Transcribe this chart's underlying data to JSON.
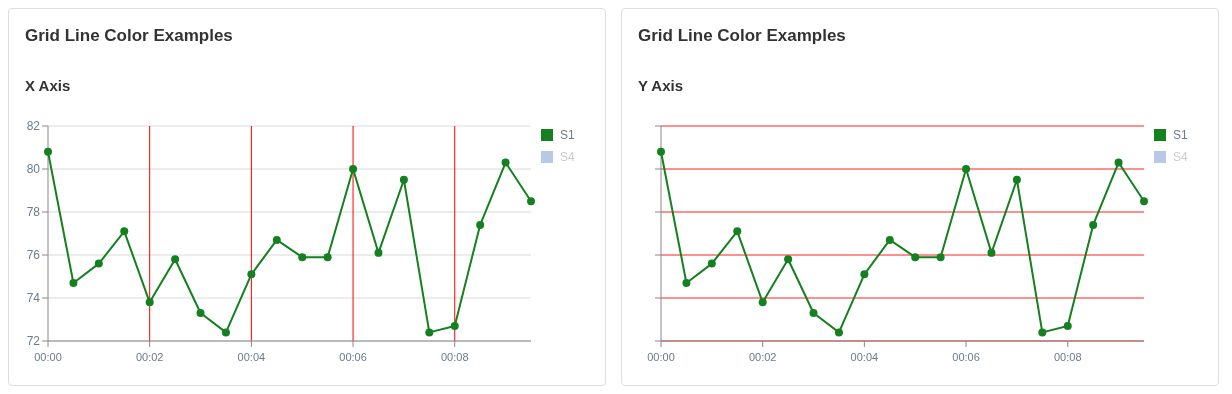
{
  "chart_data": [
    {
      "type": "line",
      "title": "Grid Line Color Examples",
      "subtitle": "X Axis",
      "x": [
        0,
        0.5,
        1,
        1.5,
        2,
        2.5,
        3,
        3.5,
        4,
        4.5,
        5,
        5.5,
        6,
        6.5,
        7,
        7.5,
        8,
        8.5,
        9,
        9.5
      ],
      "series": [
        {
          "name": "S1",
          "color": "#14801f",
          "values": [
            80.8,
            74.7,
            75.6,
            77.1,
            73.8,
            75.8,
            73.3,
            72.4,
            75.1,
            76.7,
            75.9,
            75.9,
            80.0,
            76.1,
            79.5,
            72.4,
            72.7,
            77.4,
            80.3,
            78.5
          ]
        },
        {
          "name": "S4",
          "color": "#b7c9e5",
          "values": [
            null,
            null,
            null,
            null,
            null,
            null,
            null,
            null,
            null,
            null,
            null,
            null,
            null,
            null,
            null,
            null,
            null,
            null,
            null,
            null
          ]
        }
      ],
      "xlim": [
        0,
        9.5
      ],
      "xticks": [
        {
          "value": 0,
          "label": "00:00"
        },
        {
          "value": 2,
          "label": "00:02"
        },
        {
          "value": 4,
          "label": "00:04"
        },
        {
          "value": 6,
          "label": "00:06"
        },
        {
          "value": 8,
          "label": "00:08"
        }
      ],
      "ylim": [
        72,
        82
      ],
      "yticks": [
        72,
        74,
        76,
        78,
        80,
        82
      ],
      "grid": true,
      "legend": "top right",
      "marker": "circle"
    },
    {
      "type": "line",
      "title": "Grid Line Color Examples",
      "subtitle": "Y Axis",
      "x": [
        0,
        0.5,
        1,
        1.5,
        2,
        2.5,
        3,
        3.5,
        4,
        4.5,
        5,
        5.5,
        6,
        6.5,
        7,
        7.5,
        8,
        8.5,
        9,
        9.5
      ],
      "series": [
        {
          "name": "S1",
          "color": "#14801f",
          "values": [
            80.8,
            74.7,
            75.6,
            77.1,
            73.8,
            75.8,
            73.3,
            72.4,
            75.1,
            76.7,
            75.9,
            75.9,
            80.0,
            76.1,
            79.5,
            72.4,
            72.7,
            77.4,
            80.3,
            78.5
          ]
        },
        {
          "name": "S4",
          "color": "#b7c9e5",
          "values": [
            null,
            null,
            null,
            null,
            null,
            null,
            null,
            null,
            null,
            null,
            null,
            null,
            null,
            null,
            null,
            null,
            null,
            null,
            null,
            null
          ]
        }
      ],
      "xlim": [
        0,
        9.5
      ],
      "xticks": [
        {
          "value": 0,
          "label": "00:00"
        },
        {
          "value": 2,
          "label": "00:02"
        },
        {
          "value": 4,
          "label": "00:04"
        },
        {
          "value": 6,
          "label": "00:06"
        },
        {
          "value": 8,
          "label": "00:08"
        }
      ],
      "ylim": [
        72,
        82
      ],
      "yticks": [
        72,
        74,
        76,
        78,
        80,
        82
      ],
      "grid": "y",
      "legend": "top right",
      "marker": "circle",
      "tick_labels": "x"
    }
  ]
}
